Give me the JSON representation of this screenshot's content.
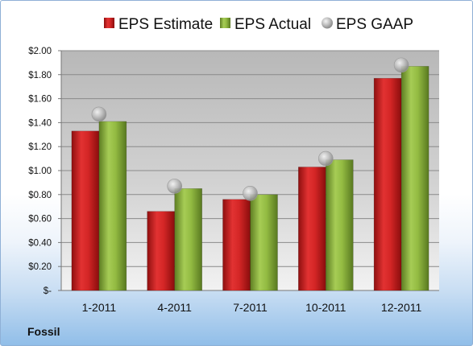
{
  "company_label": "Fossil",
  "chart_data": {
    "type": "bar",
    "categories": [
      "1-2011",
      "4-2011",
      "7-2011",
      "10-2011",
      "12-2011"
    ],
    "series": [
      {
        "name": "EPS Estimate",
        "kind": "bar",
        "color": "#cc1f1f",
        "values": [
          1.33,
          0.66,
          0.76,
          1.03,
          1.77
        ]
      },
      {
        "name": "EPS Actual",
        "kind": "bar",
        "color": "#8bb33a",
        "values": [
          1.41,
          0.85,
          0.8,
          1.09,
          1.87
        ]
      },
      {
        "name": "EPS GAAP",
        "kind": "marker",
        "color": "#b0b0b0",
        "values": [
          1.47,
          0.87,
          0.81,
          1.1,
          1.88
        ]
      }
    ],
    "ylim": [
      0,
      2.0
    ],
    "y_ticks": [
      {
        "value": 0,
        "label": "$-"
      },
      {
        "value": 0.2,
        "label": "$0.20"
      },
      {
        "value": 0.4,
        "label": "$0.40"
      },
      {
        "value": 0.6,
        "label": "$0.60"
      },
      {
        "value": 0.8,
        "label": "$0.80"
      },
      {
        "value": 1.0,
        "label": "$1.00"
      },
      {
        "value": 1.2,
        "label": "$1.20"
      },
      {
        "value": 1.4,
        "label": "$1.40"
      },
      {
        "value": 1.6,
        "label": "$1.60"
      },
      {
        "value": 1.8,
        "label": "$1.80"
      },
      {
        "value": 2.0,
        "label": "$2.00"
      }
    ],
    "grid": true,
    "legend_position": "top"
  }
}
